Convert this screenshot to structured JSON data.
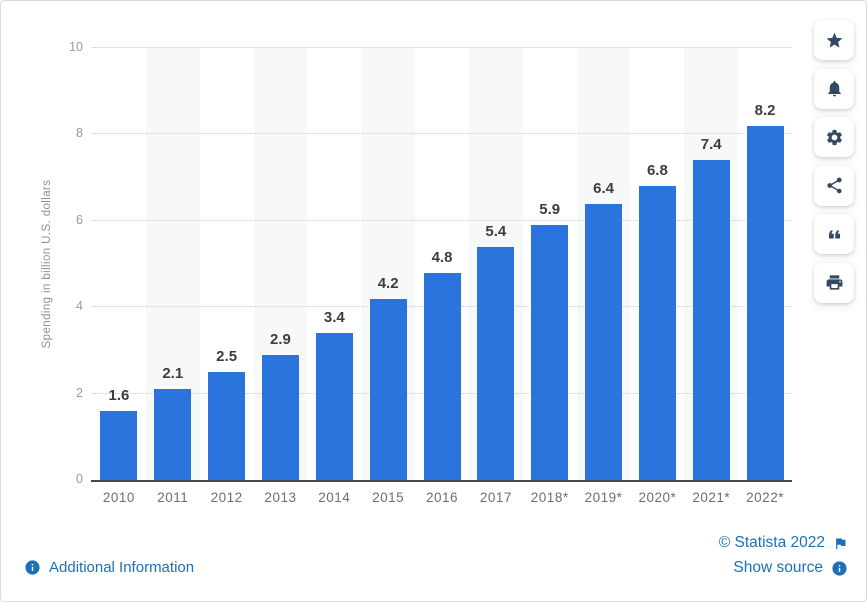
{
  "chart_data": {
    "type": "bar",
    "title": "",
    "xlabel": "",
    "ylabel": "Spending in billion U.S. dollars",
    "categories": [
      "2010",
      "2011",
      "2012",
      "2013",
      "2014",
      "2015",
      "2016",
      "2017",
      "2018*",
      "2019*",
      "2020*",
      "2021*",
      "2022*"
    ],
    "values": [
      1.6,
      2.1,
      2.5,
      2.9,
      3.4,
      4.2,
      4.8,
      5.4,
      5.9,
      6.4,
      6.8,
      7.4,
      8.2
    ],
    "value_labels": [
      "1.6",
      "2.1",
      "2.5",
      "2.9",
      "3.4",
      "4.2",
      "4.8",
      "5.4",
      "5.9",
      "6.4",
      "6.8",
      "7.4",
      "8.2"
    ],
    "ylim": [
      0,
      10
    ],
    "yticks": [
      0,
      2,
      4,
      6,
      8,
      10
    ],
    "grid": "horizontal-dotted",
    "legend": "none",
    "alternating_column_bands": true
  },
  "toolbar": {
    "buttons": [
      {
        "name": "favorite",
        "icon": "star-icon"
      },
      {
        "name": "notifications",
        "icon": "bell-icon"
      },
      {
        "name": "settings",
        "icon": "gear-icon"
      },
      {
        "name": "share",
        "icon": "share-icon"
      },
      {
        "name": "cite",
        "icon": "quote-icon"
      },
      {
        "name": "print",
        "icon": "print-icon"
      }
    ]
  },
  "footer": {
    "additional_information": "Additional Information",
    "copyright": "© Statista 2022",
    "show_source": "Show source"
  },
  "colors": {
    "bar": "#2b74dd",
    "band": "#f7f8f8",
    "link": "#1d70b7",
    "icon": "#334a63",
    "value_label": "#3d3d3d"
  }
}
